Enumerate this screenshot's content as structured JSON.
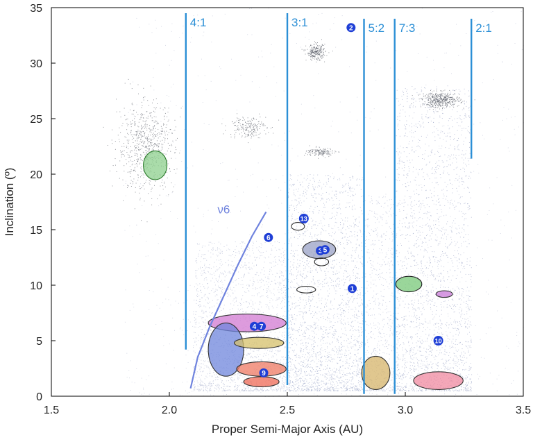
{
  "chart_data": {
    "type": "scatter",
    "xlabel": "Proper Semi-Major Axis (AU)",
    "ylabel": "Inclination (º)",
    "xlim": [
      1.5,
      3.5
    ],
    "ylim": [
      0,
      35
    ],
    "xticks": [
      1.5,
      2.0,
      2.5,
      3.0,
      3.5
    ],
    "xtick_labels": [
      "1.5",
      "2.0",
      "2.5",
      "3.0",
      "3.5"
    ],
    "yticks": [
      0,
      5,
      10,
      15,
      20,
      25,
      30,
      35
    ],
    "ytick_labels": [
      "0",
      "5",
      "10",
      "15",
      "20",
      "25",
      "30",
      "35"
    ],
    "grid": false,
    "resonance_lines": [
      {
        "label": "4:1",
        "a": 2.07,
        "i_range": [
          4.2,
          34.5
        ]
      },
      {
        "label": "3:1",
        "a": 2.5,
        "i_range": [
          1.0,
          34.5
        ]
      },
      {
        "label": "5:2",
        "a": 2.825,
        "i_range": [
          0.2,
          34.0
        ]
      },
      {
        "label": "7:3",
        "a": 2.955,
        "i_range": [
          0.2,
          34.0
        ]
      },
      {
        "label": "2:1",
        "a": 3.28,
        "i_range": [
          21.4,
          34.0
        ]
      }
    ],
    "resonance_color": "#2b8fd6",
    "nu6": {
      "label": "ν6",
      "color": "#6f83de",
      "points": [
        [
          2.09,
          0.7
        ],
        [
          2.12,
          3.5
        ],
        [
          2.17,
          6.2
        ],
        [
          2.23,
          9.0
        ],
        [
          2.29,
          11.8
        ],
        [
          2.35,
          14.4
        ],
        [
          2.41,
          16.6
        ]
      ]
    },
    "families": [
      {
        "id": "1",
        "a": 2.775,
        "i": 9.7
      },
      {
        "id": "2",
        "a": 2.77,
        "i": 33.2
      },
      {
        "id": "3",
        "a": 2.64,
        "i": 13.1
      },
      {
        "id": "4",
        "a": 2.36,
        "i": 6.3
      },
      {
        "id": "5",
        "a": 2.66,
        "i": 13.2
      },
      {
        "id": "6",
        "a": 2.42,
        "i": 14.3
      },
      {
        "id": "7",
        "a": 2.39,
        "i": 6.3
      },
      {
        "id": "9",
        "a": 2.4,
        "i": 2.1
      },
      {
        "id": "10",
        "a": 3.14,
        "i": 5.0
      },
      {
        "id": "13",
        "a": 2.57,
        "i": 16.0
      }
    ],
    "regions": [
      {
        "a": 1.94,
        "i": 20.8,
        "rx": 0.05,
        "ry": 1.3,
        "fill": "#8ed08e",
        "stroke": "#2a7a2a"
      },
      {
        "a": 2.33,
        "i": 6.6,
        "rx": 0.165,
        "ry": 0.8,
        "fill": "#d27ad2",
        "stroke": "#333333"
      },
      {
        "a": 2.24,
        "i": 4.2,
        "rx": 0.075,
        "ry": 2.4,
        "fill": "#6f86dc",
        "stroke": "#333333"
      },
      {
        "a": 2.38,
        "i": 4.8,
        "rx": 0.105,
        "ry": 0.5,
        "fill": "#d6c06a",
        "stroke": "#333333"
      },
      {
        "a": 2.39,
        "i": 2.45,
        "rx": 0.105,
        "ry": 0.65,
        "fill": "#ef7a63",
        "stroke": "#333333"
      },
      {
        "a": 2.39,
        "i": 1.3,
        "rx": 0.075,
        "ry": 0.45,
        "fill": "#ef6a55",
        "stroke": "#333333"
      },
      {
        "a": 2.035,
        "i": 0.0,
        "rx": 0.0,
        "ry": 0.0,
        "fill": "none",
        "stroke": "none"
      },
      {
        "a": 2.545,
        "i": 15.3,
        "rx": 0.028,
        "ry": 0.35,
        "fill": "none",
        "stroke": "#333333"
      },
      {
        "a": 2.635,
        "i": 13.2,
        "rx": 0.07,
        "ry": 0.8,
        "fill": "#9aa2c6",
        "stroke": "#333333"
      },
      {
        "a": 2.645,
        "i": 12.1,
        "rx": 0.03,
        "ry": 0.35,
        "fill": "none",
        "stroke": "#222222"
      },
      {
        "a": 2.58,
        "i": 9.6,
        "rx": 0.04,
        "ry": 0.3,
        "fill": "none",
        "stroke": "#333333"
      },
      {
        "a": 2.875,
        "i": 2.1,
        "rx": 0.06,
        "ry": 1.5,
        "fill": "#d6b46a",
        "stroke": "#333333"
      },
      {
        "a": 3.015,
        "i": 10.1,
        "rx": 0.055,
        "ry": 0.7,
        "fill": "#78c878",
        "stroke": "#222222"
      },
      {
        "a": 3.165,
        "i": 9.2,
        "rx": 0.035,
        "ry": 0.3,
        "fill": "#c97ad8",
        "stroke": "#333333"
      },
      {
        "a": 3.14,
        "i": 1.4,
        "rx": 0.105,
        "ry": 0.8,
        "fill": "#f08aa0",
        "stroke": "#333333"
      }
    ],
    "dense_clumps": [
      {
        "a": 1.9,
        "i": 22.5,
        "sa": 0.06,
        "si": 2.0,
        "n": 700
      },
      {
        "a": 2.62,
        "i": 31.0,
        "sa": 0.02,
        "si": 0.35,
        "n": 250
      },
      {
        "a": 3.15,
        "i": 26.7,
        "sa": 0.04,
        "si": 0.35,
        "n": 450
      },
      {
        "a": 2.33,
        "i": 24.3,
        "sa": 0.04,
        "si": 0.5,
        "n": 200
      },
      {
        "a": 2.64,
        "i": 22.0,
        "sa": 0.03,
        "si": 0.2,
        "n": 150
      }
    ]
  }
}
